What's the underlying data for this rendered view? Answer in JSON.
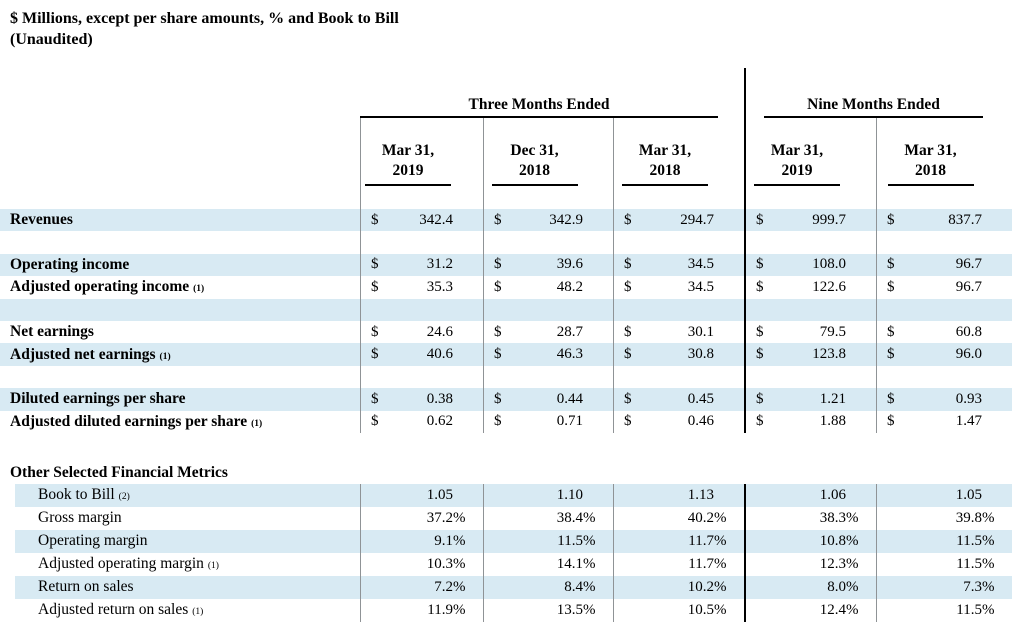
{
  "header": {
    "title_line1": "$ Millions, except per share amounts, % and Book to Bill",
    "title_line2": "(Unaudited)"
  },
  "colors": {
    "row_shade": "#d8eaf3",
    "divider_gray": "#8f9396",
    "divider_black": "#000000",
    "text": "#000000"
  },
  "table": {
    "group_headers": [
      {
        "label": "Three Months Ended",
        "colspan": 3
      },
      {
        "label": "Nine Months Ended",
        "colspan": 2
      }
    ],
    "column_headers": [
      {
        "line1": "Mar 31,",
        "line2": "2019"
      },
      {
        "line1": "Dec 31,",
        "line2": "2018"
      },
      {
        "line1": "Mar 31,",
        "line2": "2018"
      },
      {
        "line1": "Mar 31,",
        "line2": "2019"
      },
      {
        "line1": "Mar 31,",
        "line2": "2018"
      }
    ],
    "rows": [
      {
        "kind": "data",
        "label": "Revenues",
        "footnote": "",
        "bold": true,
        "shade": true,
        "prefix": "$",
        "suffix": "",
        "values": [
          "342.4",
          "342.9",
          "294.7",
          "999.7",
          "837.7"
        ]
      },
      {
        "kind": "gap",
        "shade": false
      },
      {
        "kind": "data",
        "label": "Operating income",
        "footnote": "",
        "bold": true,
        "shade": true,
        "prefix": "$",
        "suffix": "",
        "values": [
          "31.2",
          "39.6",
          "34.5",
          "108.0",
          "96.7"
        ]
      },
      {
        "kind": "data",
        "label": "Adjusted operating income",
        "footnote": "(1)",
        "bold": true,
        "shade": false,
        "prefix": "$",
        "suffix": "",
        "values": [
          "35.3",
          "48.2",
          "34.5",
          "122.6",
          "96.7"
        ]
      },
      {
        "kind": "gap",
        "shade": true
      },
      {
        "kind": "data",
        "label": "Net earnings",
        "footnote": "",
        "bold": true,
        "shade": false,
        "prefix": "$",
        "suffix": "",
        "values": [
          "24.6",
          "28.7",
          "30.1",
          "79.5",
          "60.8"
        ]
      },
      {
        "kind": "data",
        "label": "Adjusted net earnings",
        "footnote": "(1)",
        "bold": true,
        "shade": true,
        "prefix": "$",
        "suffix": "",
        "values": [
          "40.6",
          "46.3",
          "30.8",
          "123.8",
          "96.0"
        ]
      },
      {
        "kind": "gap",
        "shade": false
      },
      {
        "kind": "data",
        "label": "Diluted earnings per share",
        "footnote": "",
        "bold": true,
        "shade": true,
        "prefix": "$",
        "suffix": "",
        "values": [
          "0.38",
          "0.44",
          "0.45",
          "1.21",
          "0.93"
        ]
      },
      {
        "kind": "data",
        "label": "Adjusted diluted earnings per share",
        "footnote": "(1)",
        "bold": true,
        "shade": false,
        "prefix": "$",
        "suffix": "",
        "values": [
          "0.62",
          "0.71",
          "0.46",
          "1.88",
          "1.47"
        ]
      }
    ],
    "metrics_section": {
      "title": "Other Selected Financial Metrics",
      "rows": [
        {
          "label": "Book to Bill",
          "footnote": "(2)",
          "shade": true,
          "prefix": "",
          "suffix": "",
          "values": [
            "1.05",
            "1.10",
            "1.13",
            "1.06",
            "1.05"
          ]
        },
        {
          "label": "Gross margin",
          "footnote": "",
          "shade": false,
          "prefix": "",
          "suffix": "%",
          "values": [
            "37.2",
            "38.4",
            "40.2",
            "38.3",
            "39.8"
          ]
        },
        {
          "label": "Operating margin",
          "footnote": "",
          "shade": true,
          "prefix": "",
          "suffix": "%",
          "values": [
            "9.1",
            "11.5",
            "11.7",
            "10.8",
            "11.5"
          ]
        },
        {
          "label": "Adjusted operating margin",
          "footnote": "(1)",
          "shade": false,
          "prefix": "",
          "suffix": "%",
          "values": [
            "10.3",
            "14.1",
            "11.7",
            "12.3",
            "11.5"
          ]
        },
        {
          "label": "Return on sales",
          "footnote": "",
          "shade": true,
          "prefix": "",
          "suffix": "%",
          "values": [
            "7.2",
            "8.4",
            "10.2",
            "8.0",
            "7.3"
          ]
        },
        {
          "label": "Adjusted return on sales",
          "footnote": "(1)",
          "shade": false,
          "prefix": "",
          "suffix": "%",
          "values": [
            "11.9",
            "13.5",
            "10.5",
            "12.4",
            "11.5"
          ]
        }
      ]
    }
  }
}
